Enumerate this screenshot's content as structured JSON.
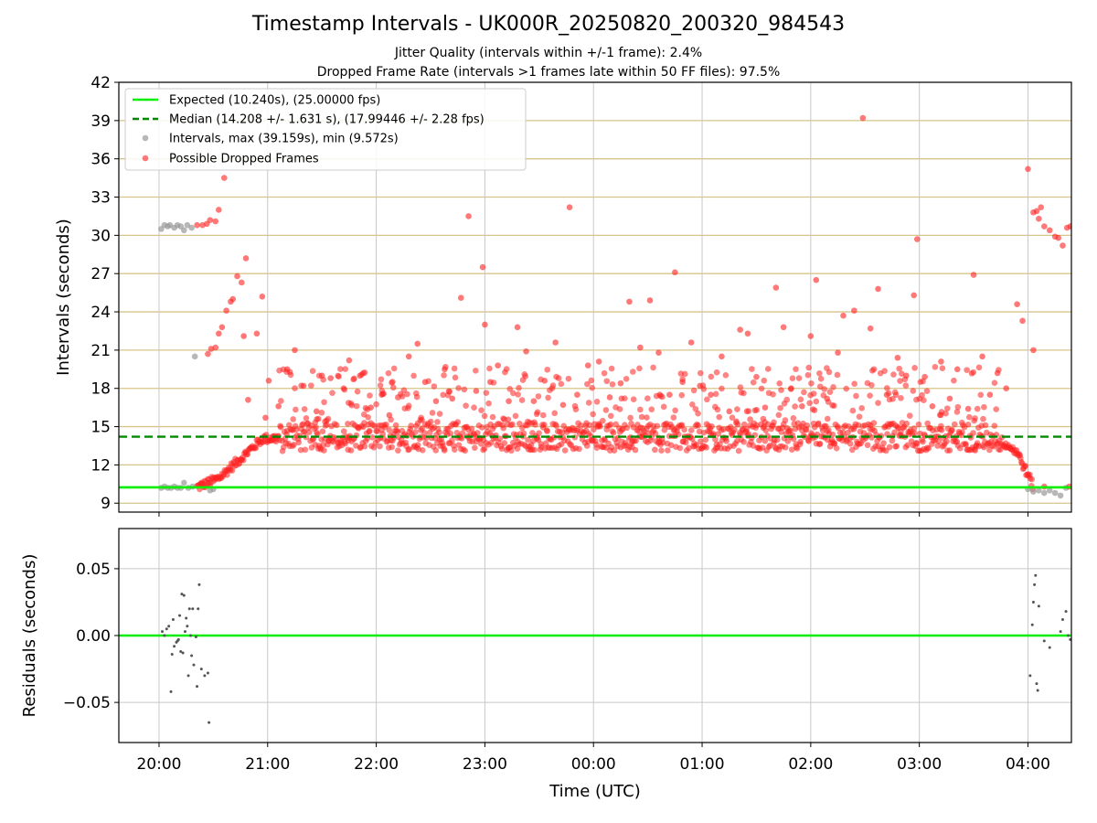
{
  "title": "Timestamp Intervals - UK000R_20250820_200320_984543",
  "subtitle1": "Jitter Quality (intervals within +/-1 frame): 2.4%",
  "subtitle2": "Dropped Frame Rate (intervals >1 frames late within 50 FF files): 97.5%",
  "colors": {
    "expected": "#00ee00",
    "median": "#008800",
    "intervals": "#999999",
    "dropped": "#ff2020",
    "residual_points": "#555555",
    "hgrid": "#d8c48a",
    "vgrid": "#c8c8c8"
  },
  "chart_data": [
    {
      "type": "scatter",
      "ylabel": "Intervals (seconds)",
      "xlim": [
        19.63,
        28.4
      ],
      "ylim": [
        8.3,
        42
      ],
      "yticks": [
        9,
        12,
        15,
        18,
        21,
        24,
        27,
        30,
        33,
        36,
        39,
        42
      ],
      "grid": true,
      "legend_position": "top-left",
      "lines": [
        {
          "name": "Expected (10.240s), (25.00000 fps)",
          "y": 10.24,
          "style": "solid"
        },
        {
          "name": "Median (14.208 +/- 1.631 s), (17.99446 +/- 2.28 fps)",
          "y": 14.208,
          "style": "dashed"
        }
      ],
      "series": [
        {
          "name": "Intervals, max (39.159s), min (9.572s)",
          "points": [
            [
              20.02,
              30.5
            ],
            [
              20.05,
              30.8
            ],
            [
              20.08,
              30.7
            ],
            [
              20.1,
              30.8
            ],
            [
              20.14,
              30.6
            ],
            [
              20.17,
              30.8
            ],
            [
              20.2,
              30.7
            ],
            [
              20.23,
              30.4
            ],
            [
              20.26,
              30.8
            ],
            [
              20.3,
              30.6
            ],
            [
              20.33,
              20.5
            ],
            [
              20.02,
              10.2
            ],
            [
              20.05,
              10.3
            ],
            [
              20.08,
              10.2
            ],
            [
              20.11,
              10.2
            ],
            [
              20.14,
              10.3
            ],
            [
              20.17,
              10.2
            ],
            [
              20.2,
              10.2
            ],
            [
              20.23,
              10.6
            ],
            [
              20.27,
              10.2
            ],
            [
              20.31,
              10.3
            ],
            [
              20.47,
              10.0
            ],
            [
              20.5,
              10.1
            ],
            [
              28.0,
              10.1
            ],
            [
              28.05,
              9.9
            ],
            [
              28.1,
              10.0
            ],
            [
              28.15,
              9.8
            ],
            [
              28.2,
              10.0
            ],
            [
              28.25,
              9.8
            ],
            [
              28.3,
              9.6
            ],
            [
              28.35,
              10.2
            ]
          ]
        },
        {
          "name": "Possible Dropped Frames",
          "points": [
            [
              20.35,
              30.8
            ],
            [
              20.4,
              30.8
            ],
            [
              20.44,
              30.9
            ],
            [
              20.47,
              31.2
            ],
            [
              20.52,
              31.1
            ],
            [
              20.55,
              32.0
            ],
            [
              20.6,
              34.5
            ],
            [
              20.45,
              20.7
            ],
            [
              20.48,
              21.1
            ],
            [
              20.52,
              21.2
            ],
            [
              20.55,
              22.3
            ],
            [
              20.58,
              22.8
            ],
            [
              20.62,
              24.1
            ],
            [
              20.66,
              24.8
            ],
            [
              20.68,
              25.0
            ],
            [
              20.72,
              26.8
            ],
            [
              20.76,
              26.3
            ],
            [
              20.8,
              28.2
            ],
            [
              20.82,
              17.1
            ],
            [
              20.78,
              22.1
            ],
            [
              20.9,
              22.3
            ],
            [
              20.95,
              25.2
            ],
            [
              20.98,
              15.7
            ],
            [
              21.01,
              18.6
            ],
            [
              21.1,
              16.6
            ],
            [
              21.18,
              19.5
            ],
            [
              21.25,
              21.0
            ],
            [
              21.33,
              18.2
            ],
            [
              21.45,
              16.2
            ],
            [
              21.5,
              19.0
            ],
            [
              21.58,
              18.8
            ],
            [
              21.7,
              18.0
            ],
            [
              21.75,
              20.2
            ],
            [
              21.85,
              19.0
            ],
            [
              21.95,
              16.5
            ],
            [
              22.05,
              17.5
            ],
            [
              22.12,
              15.9
            ],
            [
              22.2,
              17.3
            ],
            [
              22.3,
              20.5
            ],
            [
              22.38,
              21.5
            ],
            [
              22.45,
              18.5
            ],
            [
              22.55,
              17.0
            ],
            [
              22.63,
              19.5
            ],
            [
              22.7,
              17.2
            ],
            [
              22.78,
              25.1
            ],
            [
              22.85,
              31.5
            ],
            [
              22.92,
              17.8
            ],
            [
              22.98,
              27.5
            ],
            [
              23.0,
              23.0
            ],
            [
              23.05,
              18.5
            ],
            [
              23.12,
              19.8
            ],
            [
              23.22,
              17.0
            ],
            [
              23.3,
              22.8
            ],
            [
              23.38,
              20.9
            ],
            [
              23.45,
              17.0
            ],
            [
              23.55,
              18.6
            ],
            [
              23.65,
              21.6
            ],
            [
              23.72,
              16.7
            ],
            [
              23.78,
              32.2
            ],
            [
              23.85,
              17.5
            ],
            [
              23.95,
              19.8
            ],
            [
              24.05,
              20.1
            ],
            [
              24.15,
              17.3
            ],
            [
              24.25,
              18.4
            ],
            [
              24.33,
              24.8
            ],
            [
              24.43,
              21.2
            ],
            [
              24.52,
              24.9
            ],
            [
              24.6,
              20.8
            ],
            [
              24.7,
              17.5
            ],
            [
              24.75,
              27.1
            ],
            [
              24.82,
              18.5
            ],
            [
              24.9,
              21.6
            ],
            [
              24.98,
              18.2
            ],
            [
              25.08,
              17.5
            ],
            [
              25.18,
              20.5
            ],
            [
              25.25,
              16.2
            ],
            [
              25.35,
              22.6
            ],
            [
              25.42,
              22.3
            ],
            [
              25.5,
              18.9
            ],
            [
              25.58,
              16.5
            ],
            [
              25.68,
              25.9
            ],
            [
              25.75,
              22.8
            ],
            [
              25.82,
              18.0
            ],
            [
              25.92,
              16.6
            ],
            [
              26.0,
              22.1
            ],
            [
              26.05,
              26.5
            ],
            [
              26.15,
              17.2
            ],
            [
              26.25,
              20.8
            ],
            [
              26.3,
              23.7
            ],
            [
              26.4,
              24.1
            ],
            [
              26.48,
              39.2
            ],
            [
              26.55,
              22.7
            ],
            [
              26.62,
              25.8
            ],
            [
              26.7,
              17.5
            ],
            [
              26.8,
              20.4
            ],
            [
              26.88,
              19.0
            ],
            [
              26.95,
              25.3
            ],
            [
              26.98,
              29.7
            ],
            [
              27.05,
              18.9
            ],
            [
              27.12,
              16.6
            ],
            [
              27.2,
              20.1
            ],
            [
              27.28,
              17.2
            ],
            [
              27.35,
              19.5
            ],
            [
              27.45,
              16.4
            ],
            [
              27.5,
              26.9
            ],
            [
              27.58,
              20.5
            ],
            [
              27.65,
              17.5
            ],
            [
              27.72,
              19.2
            ],
            [
              27.8,
              18.0
            ],
            [
              27.9,
              24.6
            ],
            [
              27.95,
              23.3
            ],
            [
              28.0,
              35.2
            ],
            [
              28.05,
              21.0
            ],
            [
              28.05,
              31.8
            ],
            [
              28.08,
              31.9
            ],
            [
              28.1,
              31.3
            ],
            [
              28.12,
              32.2
            ],
            [
              28.15,
              30.7
            ],
            [
              28.2,
              30.4
            ],
            [
              28.25,
              29.9
            ],
            [
              28.28,
              29.8
            ],
            [
              28.32,
              29.2
            ],
            [
              28.36,
              30.6
            ],
            [
              28.39,
              30.7
            ],
            [
              28.15,
              10.3
            ],
            [
              28.38,
              10.3
            ]
          ],
          "bulk": "dense band of intervals rising from about 10.2 s near 20:20 to about 14.2 s by 20:55, spread about 13-15 s until about 03:45, then falling back to about 10.2 s by 04:00"
        }
      ]
    },
    {
      "type": "scatter",
      "xlabel": "Time (UTC)",
      "ylabel": "Residuals (seconds)",
      "xlim": [
        19.63,
        28.4
      ],
      "ylim": [
        -0.08,
        0.08
      ],
      "yticks": [
        -0.05,
        0.0,
        0.05
      ],
      "yticklabels": [
        "−0.05",
        "0.00",
        "0.05"
      ],
      "xticks": [
        20,
        21,
        22,
        23,
        24,
        25,
        26,
        27,
        28
      ],
      "xticklabels": [
        "20:00",
        "21:00",
        "22:00",
        "23:00",
        "00:00",
        "01:00",
        "02:00",
        "03:00",
        "04:00"
      ],
      "grid": true,
      "zero_line": 0.0,
      "points": [
        [
          20.03,
          0.003
        ],
        [
          20.05,
          0.0
        ],
        [
          20.07,
          0.005
        ],
        [
          20.09,
          0.007
        ],
        [
          20.11,
          -0.042
        ],
        [
          20.12,
          -0.014
        ],
        [
          20.13,
          0.012
        ],
        [
          20.14,
          -0.008
        ],
        [
          20.16,
          -0.005
        ],
        [
          20.17,
          -0.004
        ],
        [
          20.18,
          -0.003
        ],
        [
          20.19,
          0.015
        ],
        [
          20.2,
          -0.012
        ],
        [
          20.21,
          0.031
        ],
        [
          20.22,
          -0.013
        ],
        [
          20.23,
          0.03
        ],
        [
          20.24,
          0.003
        ],
        [
          20.25,
          0.013
        ],
        [
          20.26,
          0.007
        ],
        [
          20.27,
          -0.03
        ],
        [
          20.28,
          0.02
        ],
        [
          20.29,
          0.0
        ],
        [
          20.3,
          -0.015
        ],
        [
          20.31,
          0.02
        ],
        [
          20.32,
          -0.022
        ],
        [
          20.34,
          -0.001
        ],
        [
          20.35,
          -0.038
        ],
        [
          20.36,
          0.02
        ],
        [
          20.37,
          0.038
        ],
        [
          20.39,
          -0.025
        ],
        [
          20.42,
          -0.03
        ],
        [
          20.45,
          -0.028
        ],
        [
          20.46,
          -0.065
        ],
        [
          28.02,
          -0.03
        ],
        [
          28.04,
          0.008
        ],
        [
          28.05,
          0.025
        ],
        [
          28.06,
          0.038
        ],
        [
          28.07,
          0.045
        ],
        [
          28.08,
          -0.036
        ],
        [
          28.09,
          -0.041
        ],
        [
          28.1,
          0.022
        ],
        [
          28.15,
          -0.004
        ],
        [
          28.2,
          -0.009
        ],
        [
          28.3,
          0.003
        ],
        [
          28.32,
          0.012
        ],
        [
          28.35,
          0.018
        ],
        [
          28.37,
          0.0
        ],
        [
          28.39,
          -0.003
        ]
      ]
    }
  ]
}
